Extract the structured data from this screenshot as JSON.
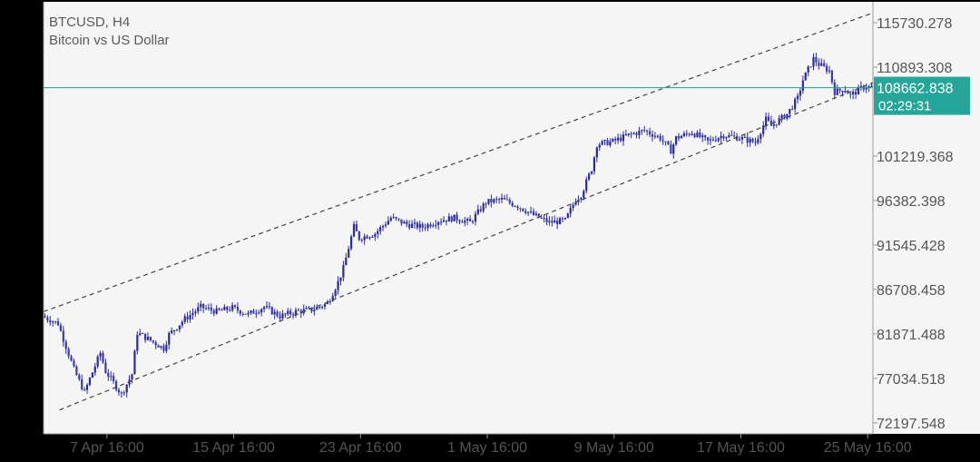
{
  "chart_data": {
    "type": "candlestick",
    "title": "BTCUSD, H4",
    "subtitle": "Bitcoin vs US Dollar",
    "y_ticks": [
      "115730.278",
      "110893.308",
      "101219.368",
      "96382.398",
      "91545.428",
      "86708.458",
      "81871.488",
      "77034.518",
      "72197.548"
    ],
    "y_tick_values": [
      115730.278,
      110893.308,
      101219.368,
      96382.398,
      91545.428,
      86708.458,
      81871.488,
      77034.518,
      72197.548
    ],
    "ylim": [
      71000,
      118000
    ],
    "x_ticks": [
      "7 Apr 16:00",
      "15 Apr 16:00",
      "23 Apr 16:00",
      "1 May 16:00",
      "9 May 16:00",
      "17 May 16:00",
      "25 May 16:00"
    ],
    "x_tick_dates": [
      "2025-04-07T16:00",
      "2025-04-15T16:00",
      "2025-04-23T16:00",
      "2025-05-01T16:00",
      "2025-05-09T16:00",
      "2025-05-17T16:00",
      "2025-05-25T16:00"
    ],
    "x_range": [
      "2025-04-03T16:00",
      "2025-05-26T00:00"
    ],
    "current_price": "108662.838",
    "current_price_value": 108662.838,
    "countdown": "02:29:31",
    "channel_upper": [
      [
        "2025-04-03T16:00",
        84300
      ],
      [
        "2025-05-26T00:00",
        116800
      ]
    ],
    "channel_lower": [
      [
        "2025-04-04T16:00",
        73600
      ],
      [
        "2025-05-26T00:00",
        109200
      ]
    ],
    "price_path": [
      [
        "2025-04-03T16:00",
        83800
      ],
      [
        "2025-04-04T16:00",
        83000
      ],
      [
        "2025-04-05T16:00",
        78000
      ],
      [
        "2025-04-06T08:00",
        75500
      ],
      [
        "2025-04-06T16:00",
        77000
      ],
      [
        "2025-04-07T08:00",
        79800
      ],
      [
        "2025-04-07T16:00",
        77800
      ],
      [
        "2025-04-08T16:00",
        75300
      ],
      [
        "2025-04-09T08:00",
        77500
      ],
      [
        "2025-04-09T16:00",
        82000
      ],
      [
        "2025-04-10T16:00",
        81000
      ],
      [
        "2025-04-11T08:00",
        80300
      ],
      [
        "2025-04-11T16:00",
        81800
      ],
      [
        "2025-04-12T16:00",
        83500
      ],
      [
        "2025-04-13T16:00",
        84800
      ],
      [
        "2025-04-14T16:00",
        84300
      ],
      [
        "2025-04-15T16:00",
        84700
      ],
      [
        "2025-04-16T16:00",
        84000
      ],
      [
        "2025-04-17T16:00",
        84800
      ],
      [
        "2025-04-18T16:00",
        83800
      ],
      [
        "2025-04-19T16:00",
        84300
      ],
      [
        "2025-04-20T16:00",
        84500
      ],
      [
        "2025-04-21T16:00",
        85200
      ],
      [
        "2025-04-22T08:00",
        87500
      ],
      [
        "2025-04-22T16:00",
        89000
      ],
      [
        "2025-04-23T08:00",
        93500
      ],
      [
        "2025-04-23T16:00",
        92300
      ],
      [
        "2025-04-24T16:00",
        92800
      ],
      [
        "2025-04-25T16:00",
        94500
      ],
      [
        "2025-04-26T16:00",
        93800
      ],
      [
        "2025-04-27T16:00",
        93500
      ],
      [
        "2025-04-28T16:00",
        94200
      ],
      [
        "2025-04-29T16:00",
        94500
      ],
      [
        "2025-04-30T16:00",
        94000
      ],
      [
        "2025-05-01T16:00",
        96200
      ],
      [
        "2025-05-02T16:00",
        96500
      ],
      [
        "2025-05-03T16:00",
        95800
      ],
      [
        "2025-05-04T16:00",
        94800
      ],
      [
        "2025-05-05T16:00",
        94000
      ],
      [
        "2025-05-06T16:00",
        94200
      ],
      [
        "2025-05-07T08:00",
        96500
      ],
      [
        "2025-05-07T16:00",
        97000
      ],
      [
        "2025-05-08T08:00",
        99800
      ],
      [
        "2025-05-08T16:00",
        102500
      ],
      [
        "2025-05-09T16:00",
        102800
      ],
      [
        "2025-05-10T16:00",
        103500
      ],
      [
        "2025-05-11T16:00",
        104000
      ],
      [
        "2025-05-12T16:00",
        103200
      ],
      [
        "2025-05-13T08:00",
        101800
      ],
      [
        "2025-05-13T16:00",
        103200
      ],
      [
        "2025-05-14T16:00",
        103800
      ],
      [
        "2025-05-15T16:00",
        102800
      ],
      [
        "2025-05-16T16:00",
        103500
      ],
      [
        "2025-05-17T16:00",
        103200
      ],
      [
        "2025-05-18T16:00",
        102700
      ],
      [
        "2025-05-19T08:00",
        105200
      ],
      [
        "2025-05-19T16:00",
        104500
      ],
      [
        "2025-05-20T16:00",
        105800
      ],
      [
        "2025-05-21T08:00",
        107500
      ],
      [
        "2025-05-21T16:00",
        109500
      ],
      [
        "2025-05-22T08:00",
        111800
      ],
      [
        "2025-05-22T16:00",
        111200
      ],
      [
        "2025-05-23T08:00",
        110500
      ],
      [
        "2025-05-23T16:00",
        108200
      ],
      [
        "2025-05-24T08:00",
        108500
      ],
      [
        "2025-05-24T16:00",
        107800
      ],
      [
        "2025-05-25T08:00",
        108600
      ],
      [
        "2025-05-25T16:00",
        108800
      ],
      [
        "2025-05-26T00:00",
        108662
      ]
    ]
  }
}
